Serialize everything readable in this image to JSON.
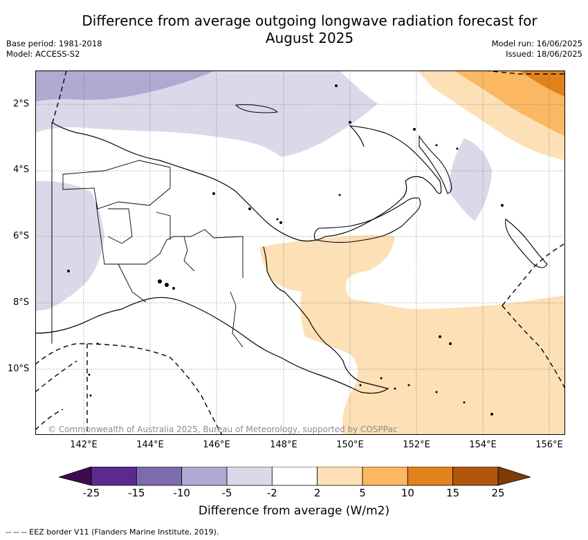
{
  "header": {
    "title_line1": "Difference from average outgoing longwave radiation forecast for",
    "title_line2": "August 2025",
    "base_period": "Base period: 1981-2018",
    "model": "Model: ACCESS-S2",
    "model_run": "Model run: 16/06/2025",
    "issued": "Issued: 18/06/2025"
  },
  "map": {
    "latitude_labels": [
      "2°S",
      "4°S",
      "6°S",
      "8°S",
      "10°S"
    ],
    "longitude_labels": [
      "142°E",
      "144°E",
      "146°E",
      "148°E",
      "150°E",
      "152°E",
      "154°E",
      "156°E"
    ],
    "copyright": "© Commonwealth of Australia 2025, Bureau of Meteorology, supported by COSPPac",
    "region": "Papua New Guinea"
  },
  "colorbar": {
    "ticks": [
      "-25",
      "-15",
      "-10",
      "-5",
      "-2",
      "2",
      "5",
      "10",
      "15",
      "25"
    ],
    "colors": [
      "#3f0a4f",
      "#5b2a8c",
      "#7e6bab",
      "#b0a9d2",
      "#d9d9ea",
      "#ffffff",
      "#fde0b5",
      "#fbb761",
      "#e1821c",
      "#b1570b",
      "#7c3b08"
    ],
    "label": "Difference from average (W/m2)"
  },
  "footer": {
    "eez_note": "--  --  -- EEZ border V11 (Flanders Marine Institute, 2019)."
  }
}
